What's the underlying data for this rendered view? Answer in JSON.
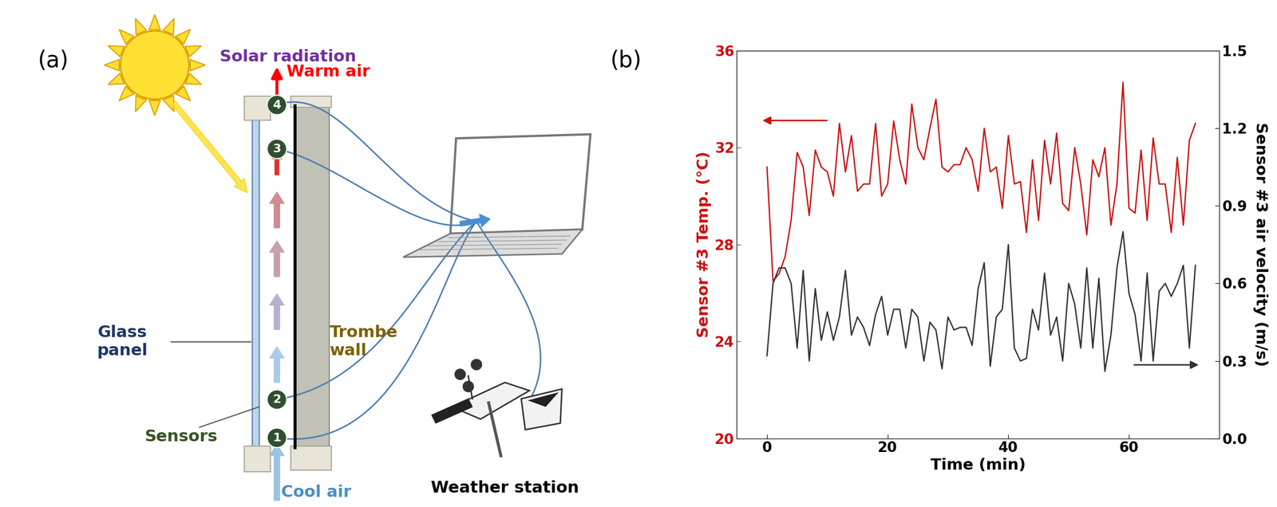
{
  "diagram": {
    "label": "(a)",
    "texts": {
      "sun": "Solar radiation",
      "warm_air": "Warm air",
      "glass": "Glass\npanel",
      "wall": "Trombe\nwall",
      "sensors": "Sensors",
      "cool_air": "Cool air",
      "station": "Weather station"
    },
    "sensors": [
      "1",
      "2",
      "3",
      "4"
    ]
  },
  "chart_data": {
    "label": "(b)",
    "type": "line",
    "xlabel": "Time (min)",
    "ylabel": "Sensor #3 Temp. (°C)",
    "y2label": "Sensor #3 air velocity (m/s)",
    "x": [
      0,
      1,
      2,
      3,
      4,
      5,
      6,
      7,
      8,
      9,
      10,
      11,
      12,
      13,
      14,
      15,
      16,
      17,
      18,
      19,
      20,
      21,
      22,
      23,
      24,
      25,
      26,
      27,
      28,
      29,
      30,
      31,
      32,
      33,
      34,
      35,
      36,
      37,
      38,
      39,
      40,
      41,
      42,
      43,
      44,
      45,
      46,
      47,
      48,
      49,
      50,
      51,
      52,
      53,
      54,
      55,
      56,
      57,
      58,
      59,
      60,
      61,
      62,
      63,
      64,
      65,
      66,
      67,
      68,
      69,
      70,
      71
    ],
    "xlim": [
      -5,
      75
    ],
    "xticks": [
      0,
      20,
      40,
      60
    ],
    "ylim": [
      20,
      36
    ],
    "yticks": [
      20,
      24,
      28,
      32,
      36
    ],
    "y2lim": [
      0,
      1.5
    ],
    "y2ticks": [
      0.0,
      0.3,
      0.6,
      0.9,
      1.2,
      1.5
    ],
    "grid": false,
    "series": [
      {
        "color": "#cc1111",
        "axis": "y",
        "values": [
          31.2,
          26.5,
          26.8,
          27.5,
          29.0,
          31.8,
          31.2,
          29.2,
          31.9,
          31.2,
          31.0,
          30.0,
          33.0,
          31.0,
          32.5,
          30.2,
          30.5,
          30.5,
          33.0,
          30.0,
          30.5,
          33.1,
          31.5,
          30.5,
          33.8,
          32.0,
          31.5,
          32.8,
          34.0,
          31.2,
          31.0,
          31.3,
          31.3,
          32.0,
          31.5,
          30.2,
          32.8,
          31.0,
          31.2,
          29.5,
          32.5,
          30.5,
          30.6,
          28.5,
          31.5,
          29.0,
          32.3,
          30.5,
          32.6,
          29.7,
          29.4,
          32.0,
          30.5,
          28.4,
          31.5,
          30.8,
          32.0,
          28.8,
          30.5,
          34.7,
          29.5,
          29.3,
          31.9,
          29.0,
          32.4,
          30.5,
          30.5,
          28.5,
          31.6,
          28.8,
          32.3,
          33.0
        ]
      },
      {
        "color": "#333333",
        "axis": "y2",
        "values": [
          0.32,
          0.6,
          0.66,
          0.66,
          0.6,
          0.35,
          0.65,
          0.3,
          0.58,
          0.38,
          0.49,
          0.38,
          0.47,
          0.65,
          0.4,
          0.47,
          0.43,
          0.36,
          0.48,
          0.55,
          0.4,
          0.5,
          0.5,
          0.35,
          0.5,
          0.47,
          0.3,
          0.45,
          0.42,
          0.27,
          0.47,
          0.42,
          0.43,
          0.43,
          0.36,
          0.58,
          0.68,
          0.28,
          0.47,
          0.5,
          0.75,
          0.35,
          0.3,
          0.31,
          0.5,
          0.42,
          0.64,
          0.4,
          0.47,
          0.3,
          0.6,
          0.52,
          0.35,
          0.66,
          0.35,
          0.62,
          0.26,
          0.4,
          0.66,
          0.8,
          0.56,
          0.48,
          0.3,
          0.64,
          0.3,
          0.57,
          0.6,
          0.55,
          0.6,
          0.67,
          0.35,
          0.67
        ]
      }
    ]
  }
}
